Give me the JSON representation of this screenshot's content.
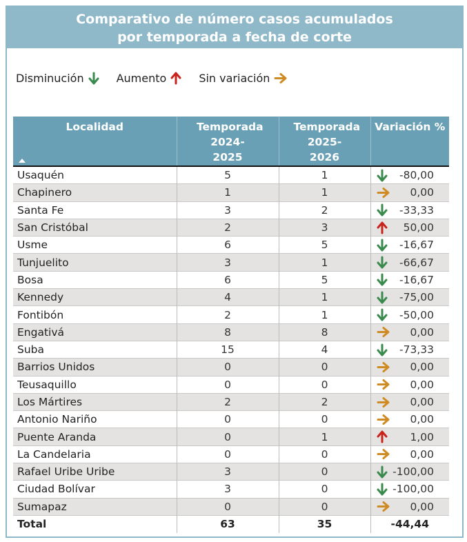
{
  "title_line1": "Comparativo de número casos acumulados",
  "title_line2": "por temporada a fecha de corte",
  "legend": [
    {
      "label": "Disminución",
      "icon": "arrow-down-green"
    },
    {
      "label": "Aumento",
      "icon": "arrow-up-red"
    },
    {
      "label": "Sin variación",
      "icon": "arrow-right-orange"
    }
  ],
  "colors": {
    "down": "#3a8a4e",
    "up": "#c8231c",
    "same": "#d08a22",
    "header": "#6aa0b5",
    "title_bg": "#8fb8c8"
  },
  "table": {
    "headers": [
      "Localidad",
      "Temporada 2024-2025",
      "Temporada 2025-2026",
      "Variación %"
    ],
    "sort": "ascending",
    "rows": [
      [
        "Usaquén",
        "5",
        "1",
        "-80,00",
        "down"
      ],
      [
        "Chapinero",
        "1",
        "1",
        "0,00",
        "same"
      ],
      [
        "Santa Fe",
        "3",
        "2",
        "-33,33",
        "down"
      ],
      [
        "San Cristóbal",
        "2",
        "3",
        "50,00",
        "up"
      ],
      [
        "Usme",
        "6",
        "5",
        "-16,67",
        "down"
      ],
      [
        "Tunjuelito",
        "3",
        "1",
        "-66,67",
        "down"
      ],
      [
        "Bosa",
        "6",
        "5",
        "-16,67",
        "down"
      ],
      [
        "Kennedy",
        "4",
        "1",
        "-75,00",
        "down"
      ],
      [
        "Fontibón",
        "2",
        "1",
        "-50,00",
        "down"
      ],
      [
        "Engativá",
        "8",
        "8",
        "0,00",
        "same"
      ],
      [
        "Suba",
        "15",
        "4",
        "-73,33",
        "down"
      ],
      [
        "Barrios Unidos",
        "0",
        "0",
        "0,00",
        "same"
      ],
      [
        "Teusaquillo",
        "0",
        "0",
        "0,00",
        "same"
      ],
      [
        "Los Mártires",
        "2",
        "2",
        "0,00",
        "same"
      ],
      [
        "Antonio Nariño",
        "0",
        "0",
        "0,00",
        "same"
      ],
      [
        "Puente Aranda",
        "0",
        "1",
        "1,00",
        "up"
      ],
      [
        "La Candelaria",
        "0",
        "0",
        "0,00",
        "same"
      ],
      [
        "Rafael Uribe Uribe",
        "3",
        "0",
        "-100,00",
        "down"
      ],
      [
        "Ciudad Bolívar",
        "3",
        "0",
        "-100,00",
        "down"
      ],
      [
        "Sumapaz",
        "0",
        "0",
        "0,00",
        "same"
      ]
    ],
    "total": [
      "Total",
      "63",
      "35",
      "-44,44"
    ]
  }
}
